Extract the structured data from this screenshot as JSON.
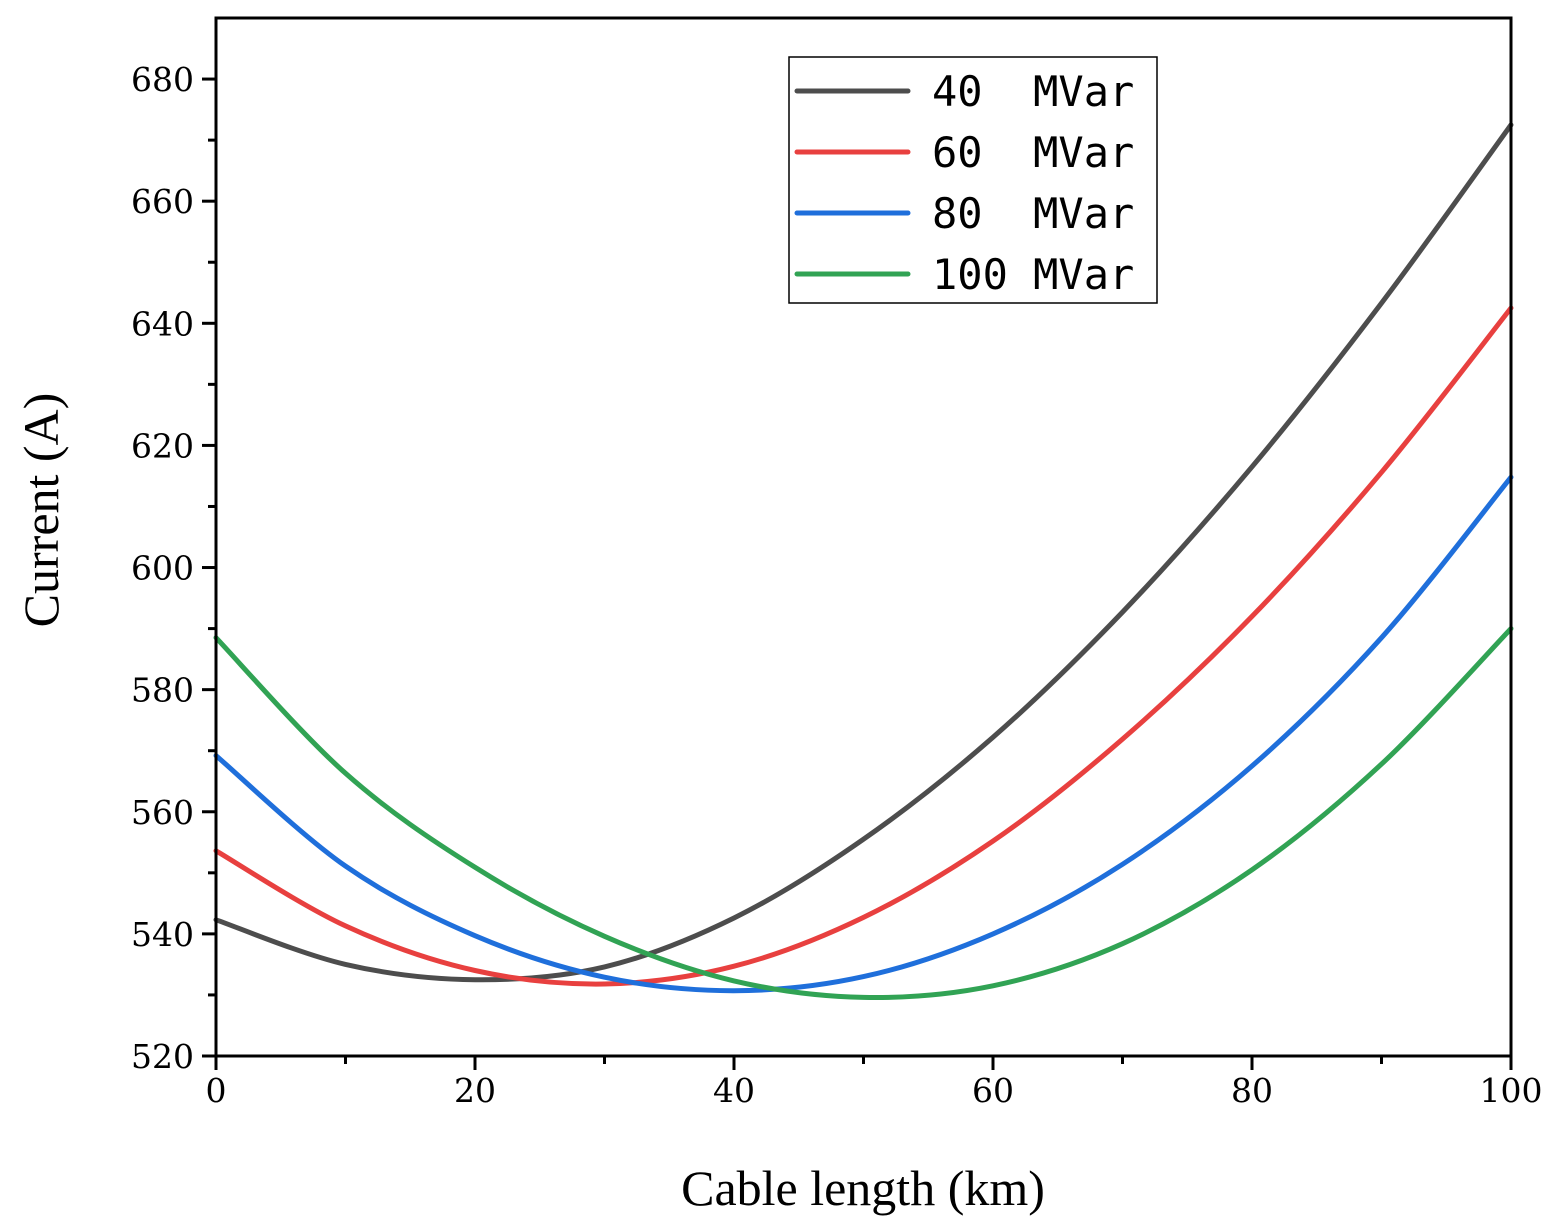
{
  "chart_data": {
    "type": "line",
    "title": "",
    "xlabel": "Cable length (km)",
    "ylabel": "Current (A)",
    "xlim": [
      0,
      100
    ],
    "ylim": [
      520,
      690
    ],
    "xticks": [
      0,
      20,
      40,
      60,
      80,
      100
    ],
    "yticks": [
      520,
      540,
      560,
      580,
      600,
      620,
      640,
      660,
      680
    ],
    "grid": false,
    "legend_position": "top-right",
    "x": [
      0,
      10,
      20,
      30,
      40,
      50,
      60,
      70,
      80,
      90,
      100
    ],
    "series": [
      {
        "name": "40  MVar",
        "color": "#4d4d4d",
        "values": [
          542.3,
          535.0,
          532.5,
          534.6,
          542.6,
          555.5,
          572.2,
          592.7,
          616.5,
          643.3,
          672.5
        ]
      },
      {
        "name": "60  MVar",
        "color": "#e8403f",
        "values": [
          553.6,
          541.3,
          534.0,
          531.8,
          534.7,
          542.7,
          555.2,
          571.9,
          592.0,
          615.6,
          642.5
        ]
      },
      {
        "name": "80  MVar",
        "color": "#1f6fdb",
        "values": [
          569.2,
          551.1,
          539.7,
          532.9,
          530.7,
          533.0,
          540.0,
          551.4,
          567.5,
          588.5,
          614.8
        ]
      },
      {
        "name": "100 MVar",
        "color": "#31a354",
        "values": [
          588.5,
          566.3,
          550.9,
          539.6,
          532.3,
          529.6,
          531.5,
          538.4,
          550.5,
          567.8,
          590.0
        ]
      }
    ]
  }
}
